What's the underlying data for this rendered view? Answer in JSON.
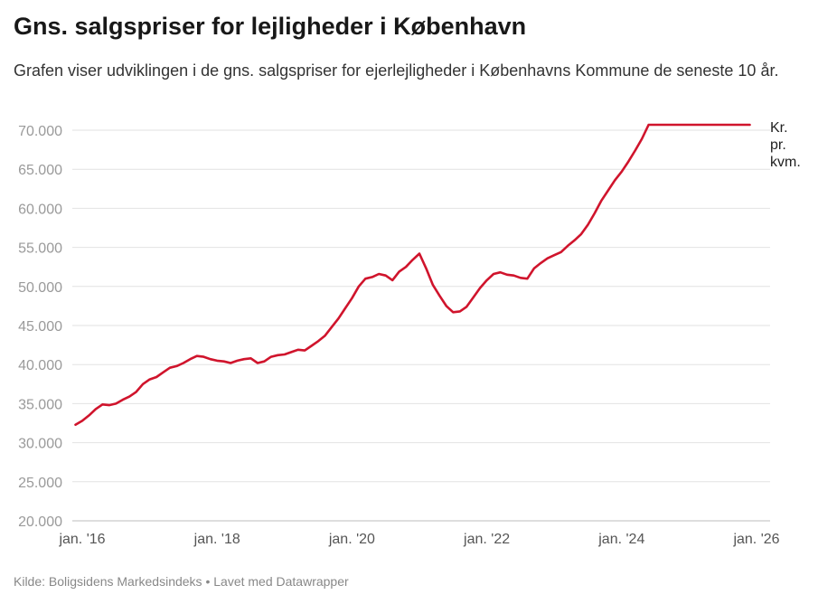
{
  "header": {
    "title": "Gns. salgspriser for lejligheder i København",
    "subtitle": "Grafen viser udviklingen i de gns. salgspriser for ejerlejligheder i Københavns Kommune de seneste 10 år."
  },
  "footer": {
    "source_label": "Kilde: Boligsidens Markedsindeks",
    "separator": "•",
    "credit": "Lavet med Datawrapper"
  },
  "chart_data": {
    "type": "line",
    "title": "Gns. salgspriser for lejligheder i København",
    "xlabel": "",
    "ylabel": "",
    "series_label": [
      "Kr.",
      "pr.",
      "kvm."
    ],
    "line_color": "#d0142c",
    "y_ticks": [
      20000,
      25000,
      30000,
      35000,
      40000,
      45000,
      50000,
      55000,
      60000,
      65000,
      70000
    ],
    "y_tick_labels": [
      "20.000",
      "25.000",
      "30.000",
      "35.000",
      "40.000",
      "45.000",
      "50.000",
      "55.000",
      "60.000",
      "65.000",
      "70.000"
    ],
    "ylim": [
      20000,
      70000
    ],
    "x_ticks": [
      2016,
      2018,
      2020,
      2022,
      2024,
      2026
    ],
    "x_tick_labels": [
      "jan. '16",
      "jan. '18",
      "jan. '20",
      "jan. '22",
      "jan. '24",
      "jan. '26"
    ],
    "xlim": [
      2016,
      2026
    ],
    "x": [
      2015.9,
      2016.0,
      2016.1,
      2016.2,
      2016.3,
      2016.4,
      2016.5,
      2016.6,
      2016.7,
      2016.8,
      2016.9,
      2017.0,
      2017.1,
      2017.2,
      2017.3,
      2017.4,
      2017.5,
      2017.6,
      2017.7,
      2017.8,
      2017.9,
      2018.0,
      2018.1,
      2018.2,
      2018.3,
      2018.4,
      2018.5,
      2018.6,
      2018.7,
      2018.8,
      2018.9,
      2019.0,
      2019.1,
      2019.2,
      2019.3,
      2019.4,
      2019.5,
      2019.6,
      2019.7,
      2019.8,
      2019.9,
      2020.0,
      2020.1,
      2020.2,
      2020.3,
      2020.4,
      2020.5,
      2020.6,
      2020.7,
      2020.8,
      2020.9,
      2021.0,
      2021.1,
      2021.2,
      2021.3,
      2021.4,
      2021.5,
      2021.6,
      2021.7,
      2021.8,
      2021.9,
      2022.0,
      2022.1,
      2022.2,
      2022.3,
      2022.4,
      2022.5,
      2022.6,
      2022.7,
      2022.8,
      2022.9,
      2023.0,
      2023.1,
      2023.2,
      2023.3,
      2023.4,
      2023.5,
      2023.6,
      2023.7,
      2023.8,
      2023.9,
      2024.0,
      2024.1,
      2024.2,
      2024.3,
      2024.4,
      2024.5,
      2024.6,
      2024.7,
      2024.8,
      2024.9,
      2025.0,
      2025.1,
      2025.2,
      2025.3,
      2025.4,
      2025.5,
      2025.6,
      2025.7,
      2025.8,
      2025.9
    ],
    "values": [
      32300,
      32800,
      33500,
      34300,
      34900,
      34800,
      35000,
      35500,
      35900,
      36500,
      37500,
      38100,
      38400,
      39000,
      39600,
      39800,
      40200,
      40700,
      41100,
      41000,
      40700,
      40500,
      40400,
      40200,
      40500,
      40700,
      40800,
      40200,
      40400,
      41000,
      41200,
      41300,
      41600,
      41900,
      41800,
      42400,
      43000,
      43700,
      44800,
      45900,
      47200,
      48500,
      50000,
      51000,
      51200,
      51600,
      51400,
      50800,
      51900,
      52500,
      53400,
      54200,
      52300,
      50200,
      48800,
      47500,
      46700,
      46800,
      47400,
      48600,
      49800,
      50800,
      51600,
      51800,
      51500,
      51400,
      51100,
      51000,
      52300,
      53000,
      53600,
      54000,
      54400,
      55200,
      55900,
      56700,
      57900,
      59400,
      61000,
      62300,
      63600,
      64700,
      66000,
      67400,
      68900,
      70700,
      70700,
      70700,
      70700,
      70700,
      70700,
      70700,
      70700,
      70700,
      70700,
      70700,
      70700,
      70700,
      70700,
      70700,
      70700
    ]
  }
}
